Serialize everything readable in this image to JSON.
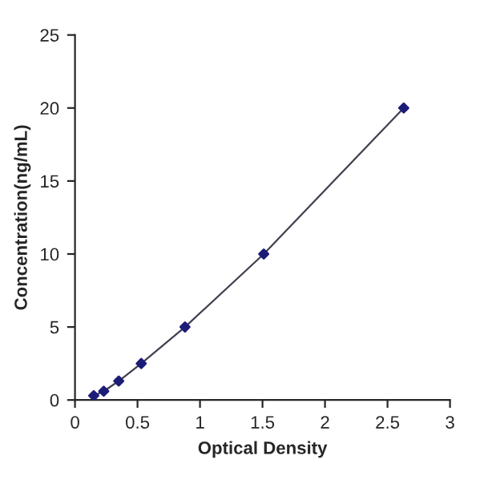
{
  "chart_data": {
    "type": "line",
    "xlabel": "Optical Density",
    "ylabel": "Concentration(ng/mL)",
    "series": [
      {
        "color": "#404050",
        "marker": "none",
        "x": [
          0.15,
          0.23,
          0.35,
          0.53,
          0.88,
          1.51,
          2.63
        ],
        "values": [
          0.3,
          0.6,
          1.3,
          2.5,
          5,
          10,
          20
        ]
      },
      {
        "type": "scatter",
        "color": "#1c1c78",
        "marker": "diamond",
        "x": [
          0.15,
          0.23,
          0.35,
          0.53,
          0.88,
          1.51,
          2.63
        ],
        "values": [
          0.3,
          0.6,
          1.3,
          2.5,
          5,
          10,
          20
        ]
      }
    ],
    "xlim": [
      0,
      3
    ],
    "xticks": [
      0,
      0.5,
      1,
      1.5,
      2,
      2.5,
      3
    ],
    "ylim": [
      0,
      25
    ],
    "yticks": [
      0,
      5,
      10,
      15,
      20,
      25
    ],
    "grid": false,
    "legend": false
  }
}
